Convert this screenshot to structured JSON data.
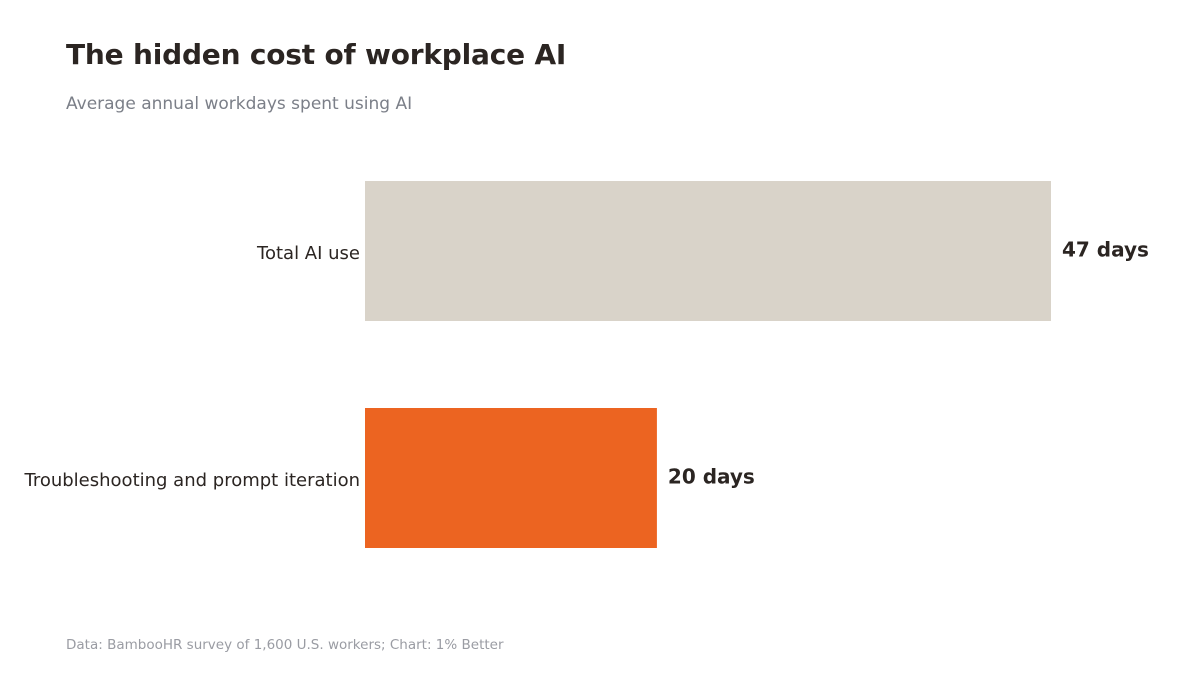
{
  "header": {
    "title": "The hidden cost of workplace AI",
    "subtitle": "Average annual workdays spent using AI"
  },
  "footer": {
    "source": "Data: BambooHR survey of 1,600 U.S. workers; Chart: 1% Better"
  },
  "chart_data": {
    "type": "bar",
    "orientation": "horizontal",
    "title": "The hidden cost of workplace AI",
    "subtitle": "Average annual workdays spent using AI",
    "categories": [
      "Total AI use",
      "Troubleshooting and prompt iteration"
    ],
    "values": [
      47,
      20
    ],
    "value_labels": [
      "47 days",
      "20 days"
    ],
    "colors": [
      "#d9d3c9",
      "#ec6421"
    ],
    "unit": "days",
    "xlim": [
      0,
      47
    ],
    "grid": false,
    "legend": "none"
  }
}
